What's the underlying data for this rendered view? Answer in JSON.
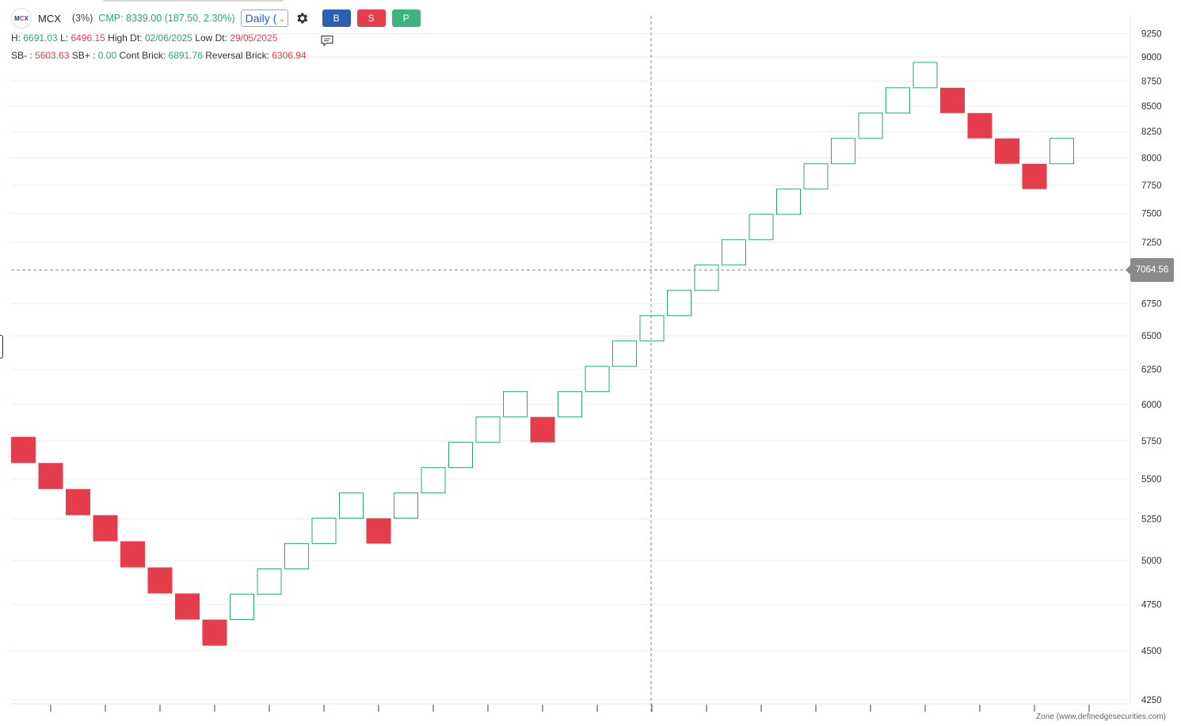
{
  "header": {
    "logo_text": "MCX",
    "symbol": "MCX",
    "reversal_pct": "(3%)",
    "cmp_label": "CMP:",
    "cmp_value": "8339.00 (187.50, 2.30%)",
    "interval": "Daily (",
    "buttons": {
      "buy": "B",
      "sell": "S",
      "p": "P"
    }
  },
  "stats": {
    "high_label": "H:",
    "high_value": "6691.03",
    "low_label": "L:",
    "low_value": "6496.15",
    "high_dt_label": "High Dt:",
    "high_dt_value": "02/06/2025",
    "low_dt_label": "Low Dt:",
    "low_dt_value": "29/05/2025",
    "sb_minus_label": "SB- :",
    "sb_minus_value": "5603.63",
    "sb_plus_label": "SB+ :",
    "sb_plus_value": "0.00",
    "cont_brick_label": "Cont Brick:",
    "cont_brick_value": "6891.76",
    "reversal_brick_label": "Reversal Brick:",
    "reversal_brick_value": "6306.94"
  },
  "crosshair_price": "7064.56",
  "credit": "Zone (www.definedgesecurities.com)",
  "colors": {
    "up": "#2ca773",
    "down": "#e63d4c",
    "grid": "#eeeeee",
    "label_bg": "#8a8a8a"
  },
  "chart_data": {
    "type": "renko",
    "scale": "log",
    "reversal_pct": 3,
    "yticks": [
      4250,
      4500,
      4750,
      5000,
      5250,
      5500,
      5750,
      6000,
      6250,
      6500,
      6750,
      7250,
      7500,
      7750,
      8000,
      8250,
      8500,
      8750,
      9000,
      9250
    ],
    "ylim": [
      4250,
      9400
    ],
    "bricks": [
      {
        "dir": "down",
        "low": 5603.6,
        "high": 5776.9
      },
      {
        "dir": "down",
        "low": 5435.5,
        "high": 5603.6
      },
      {
        "dir": "down",
        "low": 5272.4,
        "high": 5435.5
      },
      {
        "dir": "down",
        "low": 5114.3,
        "high": 5272.4
      },
      {
        "dir": "down",
        "low": 4960.8,
        "high": 5114.3
      },
      {
        "dir": "down",
        "low": 4812.0,
        "high": 4960.8
      },
      {
        "dir": "down",
        "low": 4667.6,
        "high": 4812.0
      },
      {
        "dir": "down",
        "low": 4527.6,
        "high": 4667.6
      },
      {
        "dir": "up",
        "low": 4667.6,
        "high": 4807.6
      },
      {
        "dir": "up",
        "low": 4807.6,
        "high": 4951.9
      },
      {
        "dir": "up",
        "low": 4951.9,
        "high": 5100.4
      },
      {
        "dir": "up",
        "low": 5100.4,
        "high": 5253.5
      },
      {
        "dir": "up",
        "low": 5253.5,
        "high": 5411.1
      },
      {
        "dir": "down",
        "low": 5100.4,
        "high": 5253.5
      },
      {
        "dir": "up",
        "low": 5253.5,
        "high": 5411.1
      },
      {
        "dir": "up",
        "low": 5411.1,
        "high": 5573.4
      },
      {
        "dir": "up",
        "low": 5573.4,
        "high": 5740.6
      },
      {
        "dir": "up",
        "low": 5740.6,
        "high": 5912.8
      },
      {
        "dir": "up",
        "low": 5912.8,
        "high": 6090.2
      },
      {
        "dir": "down",
        "low": 5740.6,
        "high": 5912.8
      },
      {
        "dir": "up",
        "low": 5912.8,
        "high": 6090.2
      },
      {
        "dir": "up",
        "low": 6090.2,
        "high": 6272.9
      },
      {
        "dir": "up",
        "low": 6272.9,
        "high": 6461.1
      },
      {
        "dir": "up",
        "low": 6461.1,
        "high": 6655.0
      },
      {
        "dir": "up",
        "low": 6655.0,
        "high": 6854.6
      },
      {
        "dir": "up",
        "low": 6854.6,
        "high": 7060.2
      },
      {
        "dir": "up",
        "low": 7060.2,
        "high": 7272.0
      },
      {
        "dir": "up",
        "low": 7272.0,
        "high": 7490.2
      },
      {
        "dir": "up",
        "low": 7490.2,
        "high": 7714.9
      },
      {
        "dir": "up",
        "low": 7714.9,
        "high": 7946.4
      },
      {
        "dir": "up",
        "low": 7946.4,
        "high": 8184.8
      },
      {
        "dir": "up",
        "low": 8184.8,
        "high": 8430.3
      },
      {
        "dir": "up",
        "low": 8430.3,
        "high": 8683.2
      },
      {
        "dir": "up",
        "low": 8683.2,
        "high": 8943.7
      },
      {
        "dir": "down",
        "low": 8430.3,
        "high": 8683.2
      },
      {
        "dir": "down",
        "low": 8184.8,
        "high": 8430.3
      },
      {
        "dir": "down",
        "low": 7946.4,
        "high": 8184.8
      },
      {
        "dir": "down",
        "low": 7714.9,
        "high": 7946.4
      },
      {
        "dir": "up",
        "low": 7946.4,
        "high": 8184.8
      }
    ],
    "crosshair": {
      "brick_index": 23,
      "price": 7064.56
    }
  }
}
